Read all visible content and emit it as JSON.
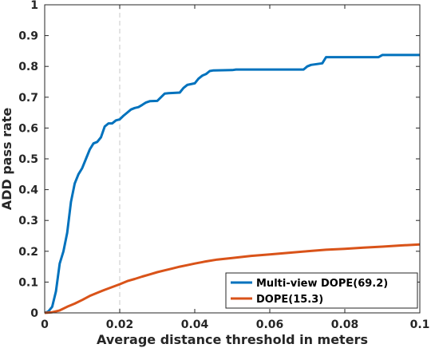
{
  "chart_data": {
    "type": "line",
    "xlabel": "Average distance threshold in meters",
    "ylabel": "ADD pass rate",
    "xlim": [
      0,
      0.1
    ],
    "ylim": [
      0,
      1
    ],
    "xticks": [
      0,
      0.02,
      0.04,
      0.06,
      0.08,
      0.1
    ],
    "xtick_labels": [
      "0",
      "0.02",
      "0.04",
      "0.06",
      "0.08",
      "0.1"
    ],
    "yticks": [
      0,
      0.1,
      0.2,
      0.3,
      0.4,
      0.5,
      0.6,
      0.7,
      0.8,
      0.9,
      1
    ],
    "ytick_labels": [
      "0",
      "0.1",
      "0.2",
      "0.3",
      "0.4",
      "0.5",
      "0.6",
      "0.7",
      "0.8",
      "0.9",
      "1"
    ],
    "vline_x": 0.02,
    "legend_position": "bottom-right",
    "series": [
      {
        "name": "Multi-view DOPE(69.2)",
        "color": "#0072bd",
        "x": [
          0,
          0.001,
          0.002,
          0.003,
          0.004,
          0.005,
          0.006,
          0.007,
          0.008,
          0.009,
          0.01,
          0.011,
          0.012,
          0.013,
          0.014,
          0.015,
          0.016,
          0.017,
          0.018,
          0.019,
          0.02,
          0.021,
          0.022,
          0.023,
          0.024,
          0.025,
          0.026,
          0.027,
          0.028,
          0.03,
          0.031,
          0.032,
          0.033,
          0.036,
          0.037,
          0.038,
          0.04,
          0.041,
          0.042,
          0.043,
          0.044,
          0.045,
          0.05,
          0.051,
          0.055,
          0.06,
          0.065,
          0.069,
          0.07,
          0.071,
          0.074,
          0.075,
          0.08,
          0.085,
          0.089,
          0.09,
          0.095,
          0.1
        ],
        "y": [
          0,
          0.005,
          0.02,
          0.07,
          0.16,
          0.2,
          0.26,
          0.36,
          0.42,
          0.45,
          0.47,
          0.5,
          0.53,
          0.55,
          0.555,
          0.57,
          0.605,
          0.615,
          0.615,
          0.625,
          0.628,
          0.64,
          0.65,
          0.66,
          0.665,
          0.668,
          0.675,
          0.683,
          0.687,
          0.688,
          0.7,
          0.712,
          0.713,
          0.715,
          0.73,
          0.74,
          0.745,
          0.76,
          0.77,
          0.775,
          0.785,
          0.787,
          0.788,
          0.79,
          0.79,
          0.79,
          0.79,
          0.79,
          0.8,
          0.805,
          0.81,
          0.83,
          0.83,
          0.83,
          0.83,
          0.837,
          0.837,
          0.837
        ]
      },
      {
        "name": "DOPE(15.3)",
        "color": "#d95319",
        "x": [
          0,
          0.002,
          0.004,
          0.006,
          0.008,
          0.01,
          0.012,
          0.014,
          0.016,
          0.018,
          0.02,
          0.022,
          0.024,
          0.026,
          0.028,
          0.03,
          0.032,
          0.034,
          0.036,
          0.038,
          0.04,
          0.043,
          0.046,
          0.05,
          0.055,
          0.06,
          0.065,
          0.07,
          0.075,
          0.08,
          0.085,
          0.09,
          0.095,
          0.1
        ],
        "y": [
          0,
          0.002,
          0.008,
          0.02,
          0.03,
          0.042,
          0.055,
          0.065,
          0.075,
          0.084,
          0.093,
          0.103,
          0.11,
          0.118,
          0.125,
          0.132,
          0.138,
          0.144,
          0.15,
          0.155,
          0.16,
          0.167,
          0.173,
          0.178,
          0.185,
          0.19,
          0.195,
          0.2,
          0.205,
          0.208,
          0.212,
          0.215,
          0.219,
          0.222
        ]
      }
    ]
  }
}
